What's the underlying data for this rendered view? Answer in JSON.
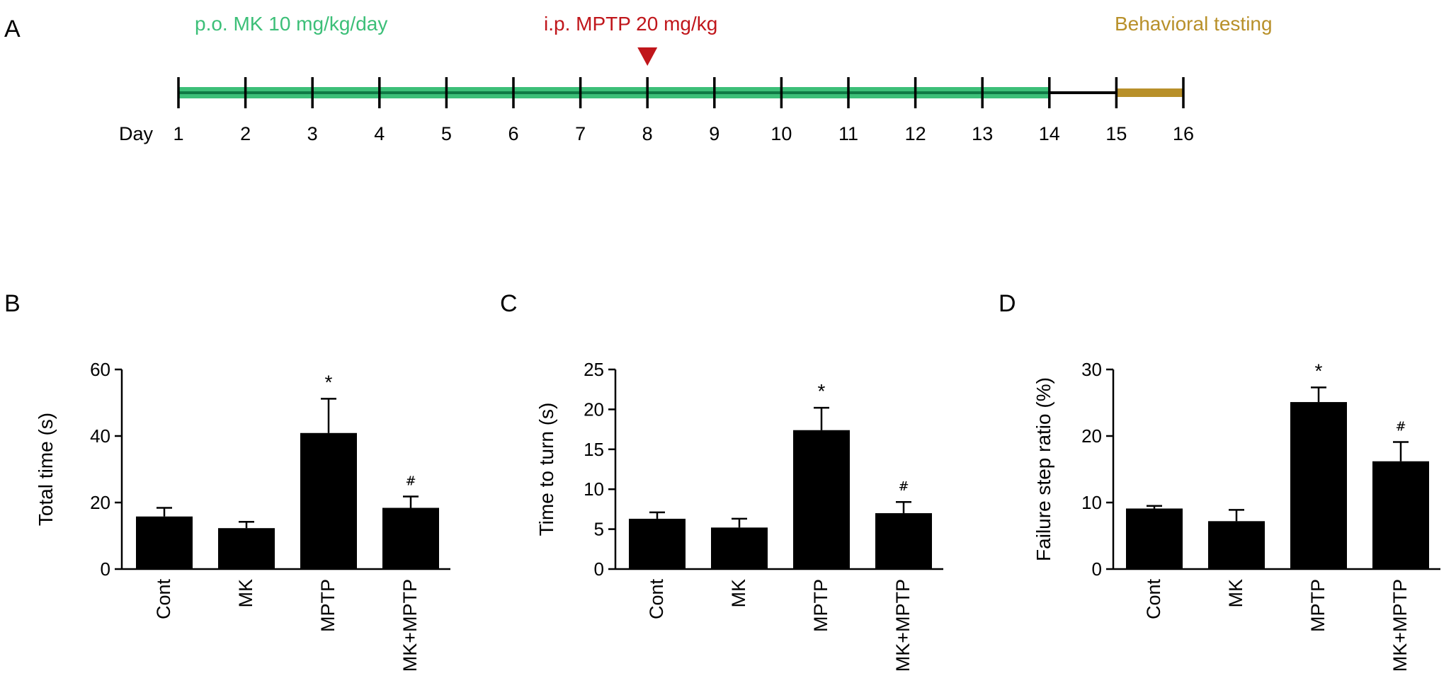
{
  "panels": {
    "A": "A",
    "B": "B",
    "C": "C",
    "D": "D"
  },
  "timeline": {
    "day_label": "Day",
    "days": [
      "1",
      "2",
      "3",
      "4",
      "5",
      "6",
      "7",
      "8",
      "9",
      "10",
      "11",
      "12",
      "13",
      "14",
      "15",
      "16"
    ],
    "treatment_label": "p.o. MK 10 mg/kg/day",
    "injection_label": "i.p. MPTP 20 mg/kg",
    "testing_label": "Behavioral testing",
    "treatment_days": [
      1,
      14
    ],
    "injection_day": 8,
    "testing_days": [
      15,
      16
    ],
    "colors": {
      "treatment": "#3cbf78",
      "treatment_core": "#0f7a45",
      "injection": "#c0161b",
      "testing": "#b8902a",
      "axis": "#000000"
    }
  },
  "chart_data": [
    {
      "type": "bar",
      "categories": [
        "Cont",
        "MK",
        "MPTP",
        "MK+MPTP"
      ],
      "values": [
        15.8,
        12.3,
        40.9,
        18.4
      ],
      "errors": [
        2.6,
        1.9,
        10.3,
        3.4
      ],
      "significance": [
        "",
        "",
        "*",
        "#"
      ],
      "ylabel": "Total time (s)",
      "ylim": [
        0,
        60
      ],
      "yticks": [
        "0",
        "20",
        "40",
        "60"
      ],
      "color": "#000000"
    },
    {
      "type": "bar",
      "categories": [
        "Cont",
        "MK",
        "MPTP",
        "MK+MPTP"
      ],
      "values": [
        6.3,
        5.2,
        17.4,
        7.0
      ],
      "errors": [
        0.8,
        1.1,
        2.8,
        1.4
      ],
      "significance": [
        "",
        "",
        "*",
        "#"
      ],
      "ylabel": "Time to turn (s)",
      "ylim": [
        0,
        25
      ],
      "yticks": [
        "0",
        "5",
        "10",
        "15",
        "20",
        "25"
      ],
      "color": "#000000"
    },
    {
      "type": "bar",
      "categories": [
        "Cont",
        "MK",
        "MPTP",
        "MK+MPTP"
      ],
      "values": [
        9.1,
        7.2,
        25.1,
        16.2
      ],
      "errors": [
        0.4,
        1.7,
        2.2,
        2.9
      ],
      "significance": [
        "",
        "",
        "*",
        "#"
      ],
      "ylabel": "Failure step ratio (%)",
      "ylim": [
        0,
        30
      ],
      "yticks": [
        "0",
        "10",
        "20",
        "30"
      ],
      "color": "#000000"
    }
  ]
}
